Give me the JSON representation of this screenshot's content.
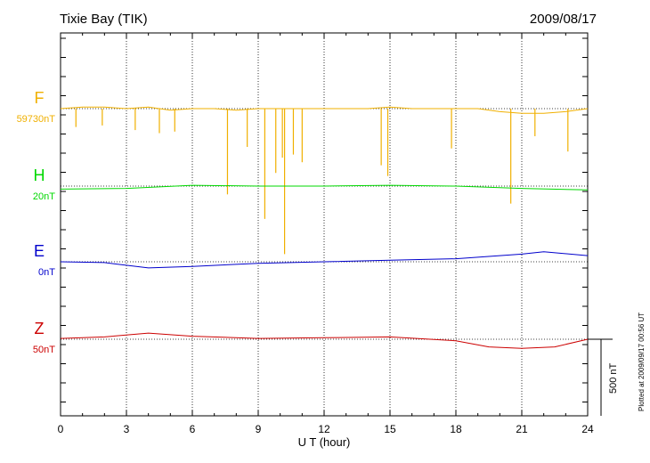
{
  "header": {
    "station": "Tixie Bay (TIK)",
    "date": "2009/08/17"
  },
  "footer": {
    "plotted": "Plotted at 2009/09/17 00:56 UT"
  },
  "chart_data": {
    "type": "line",
    "xlabel": "U T (hour)",
    "xlim": [
      0,
      24
    ],
    "xticks": [
      0,
      3,
      6,
      9,
      12,
      15,
      18,
      21,
      24
    ],
    "xtick_labels": [
      "0",
      "3",
      "6",
      "9",
      "12",
      "15",
      "18",
      "21",
      "24"
    ],
    "grid": true,
    "scale_bar": {
      "label": "500 nT",
      "value_nT": 500
    },
    "series": [
      {
        "name": "F",
        "baseline_label": "59730nT",
        "color": "#f0b000",
        "offset_nT": 0,
        "points": [
          [
            0,
            0
          ],
          [
            1,
            10
          ],
          [
            2,
            10
          ],
          [
            3,
            0
          ],
          [
            4,
            10
          ],
          [
            5,
            -10
          ],
          [
            6,
            0
          ],
          [
            7,
            0
          ],
          [
            8,
            -10
          ],
          [
            9,
            0
          ],
          [
            10,
            0
          ],
          [
            11,
            0
          ],
          [
            12,
            0
          ],
          [
            13,
            0
          ],
          [
            14,
            0
          ],
          [
            15,
            10
          ],
          [
            16,
            0
          ],
          [
            17,
            0
          ],
          [
            18,
            0
          ],
          [
            19,
            0
          ],
          [
            20,
            -20
          ],
          [
            21,
            -30
          ],
          [
            22,
            -30
          ],
          [
            23,
            -20
          ],
          [
            24,
            0
          ]
        ],
        "spikes": [
          [
            0.7,
            -120
          ],
          [
            1.9,
            -110
          ],
          [
            3.4,
            -140
          ],
          [
            4.5,
            -160
          ],
          [
            5.2,
            -150
          ],
          [
            7.6,
            -560
          ],
          [
            8.5,
            -250
          ],
          [
            9.3,
            -720
          ],
          [
            9.8,
            -420
          ],
          [
            10.1,
            -320
          ],
          [
            10.2,
            -950
          ],
          [
            10.6,
            -300
          ],
          [
            11.0,
            -350
          ],
          [
            14.6,
            -370
          ],
          [
            14.9,
            -440
          ],
          [
            17.8,
            -260
          ],
          [
            20.5,
            -620
          ],
          [
            21.6,
            -180
          ],
          [
            23.1,
            -280
          ]
        ]
      },
      {
        "name": "H",
        "baseline_label": "20nT",
        "color": "#00d800",
        "offset_nT": 0,
        "points": [
          [
            0,
            -20
          ],
          [
            3,
            -15
          ],
          [
            6,
            5
          ],
          [
            9,
            0
          ],
          [
            12,
            0
          ],
          [
            15,
            5
          ],
          [
            18,
            0
          ],
          [
            21,
            -15
          ],
          [
            24,
            -25
          ]
        ]
      },
      {
        "name": "E",
        "baseline_label": "0nT",
        "color": "#0000cc",
        "offset_nT": 0,
        "points": [
          [
            0,
            0
          ],
          [
            2,
            -5
          ],
          [
            4,
            -40
          ],
          [
            6,
            -30
          ],
          [
            9,
            -10
          ],
          [
            12,
            0
          ],
          [
            15,
            10
          ],
          [
            18,
            20
          ],
          [
            21,
            50
          ],
          [
            22,
            65
          ],
          [
            24,
            40
          ]
        ]
      },
      {
        "name": "Z",
        "baseline_label": "50nT",
        "color": "#cc0000",
        "offset_nT": 0,
        "points": [
          [
            0,
            5
          ],
          [
            2,
            15
          ],
          [
            4,
            40
          ],
          [
            6,
            20
          ],
          [
            9,
            5
          ],
          [
            12,
            10
          ],
          [
            15,
            15
          ],
          [
            18,
            -10
          ],
          [
            19.5,
            -50
          ],
          [
            21,
            -60
          ],
          [
            22.5,
            -50
          ],
          [
            24,
            0
          ]
        ]
      }
    ]
  }
}
